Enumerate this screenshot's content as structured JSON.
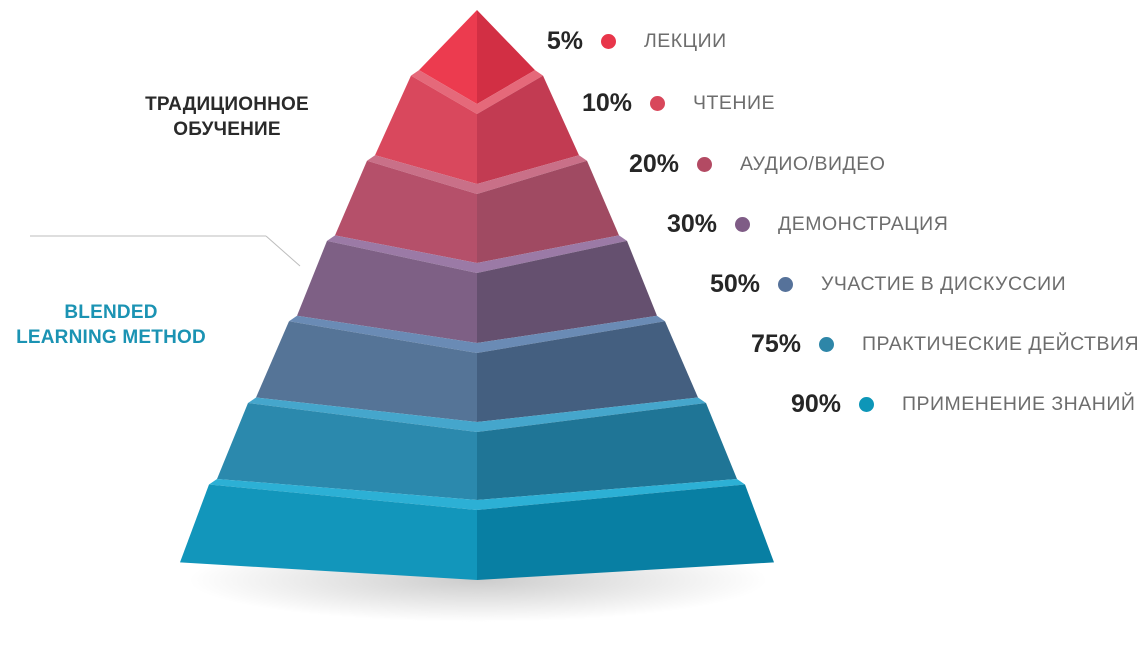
{
  "labels": {
    "traditional": [
      "ТРАДИЦИОННОЕ",
      "ОБУЧЕНИЕ"
    ],
    "blended": [
      "BLENDED",
      "LEARNING METHOD"
    ]
  },
  "levels": [
    {
      "percent": "5%",
      "value": 5,
      "label": "ЛЕКЦИИ",
      "color": "#e8364a"
    },
    {
      "percent": "10%",
      "value": 10,
      "label": "ЧТЕНИЕ",
      "color": "#d8475b"
    },
    {
      "percent": "20%",
      "value": 20,
      "label": "АУДИО/ВИДЕО",
      "color": "#b34a63"
    },
    {
      "percent": "30%",
      "value": 30,
      "label": "ДЕМОНСТРАЦИЯ",
      "color": "#7f5c86"
    },
    {
      "percent": "50%",
      "value": 50,
      "label": "УЧАСТИЕ В ДИСКУССИИ",
      "color": "#56729a"
    },
    {
      "percent": "75%",
      "value": 75,
      "label": "ПРАКТИЧЕСКИЕ ДЕЙСТВИЯ",
      "color": "#2e86a8"
    },
    {
      "percent": "90%",
      "value": 90,
      "label": "ПРИМЕНЕНИЕ ЗНАНИЙ",
      "color": "#0d96b8"
    }
  ],
  "colors": {
    "left_faces": [
      "#ec3b4f",
      "#d9485d",
      "#b5506a",
      "#7e6085",
      "#557497",
      "#2b89ad",
      "#1296bb"
    ],
    "right_faces": [
      "#d22f44",
      "#c23b52",
      "#a04a62",
      "#65506f",
      "#445f80",
      "#1f7596",
      "#087fa3"
    ],
    "top_faces": [
      "#f05565",
      "#e5697a",
      "#c97088",
      "#9b7aa6",
      "#6a8bb5",
      "#45a6cc",
      "#2cb0d5"
    ]
  }
}
